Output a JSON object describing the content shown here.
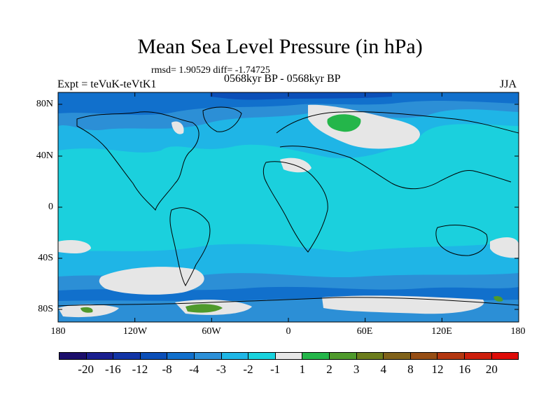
{
  "title": "Mean Sea Level Pressure (in hPa)",
  "stats_line": "rmsd= 1.90529 diff= -1.74725",
  "period_line": "0568kyr BP - 0568kyr BP",
  "experiment": "Expt = teVuK-teVtK1",
  "season": "JJA",
  "lat_ticks": [
    "80N",
    "40N",
    "0",
    "40S",
    "80S"
  ],
  "lon_ticks": [
    "180",
    "120W",
    "60W",
    "0",
    "60E",
    "120E",
    "180"
  ],
  "colorbar": {
    "colors": [
      "#1b0e6b",
      "#1a1f8f",
      "#1235a6",
      "#0b4fb8",
      "#1170cc",
      "#2c90d8",
      "#1fb7e6",
      "#18d2dd",
      "#e6e6e6",
      "#24b64a",
      "#4f9a2c",
      "#6c7d1d",
      "#80621a",
      "#964e14",
      "#b33710",
      "#cc1f0c",
      "#de0c08"
    ],
    "labels": [
      "-20",
      "-16",
      "-12",
      "-8",
      "-4",
      "-3",
      "-2",
      "-1",
      "1",
      "2",
      "3",
      "4",
      "8",
      "12",
      "16",
      "20"
    ]
  },
  "map_colors": {
    "ocean_main": "#1bd0dd",
    "light_blue": "#1fb5e6",
    "mid_blue": "#2c8fd6",
    "dark_blue": "#1170cc",
    "deep_blue": "#0b4fb8",
    "near_zero": "#e6e6e6",
    "green": "#24b64a",
    "olive": "#4f9a2c"
  }
}
